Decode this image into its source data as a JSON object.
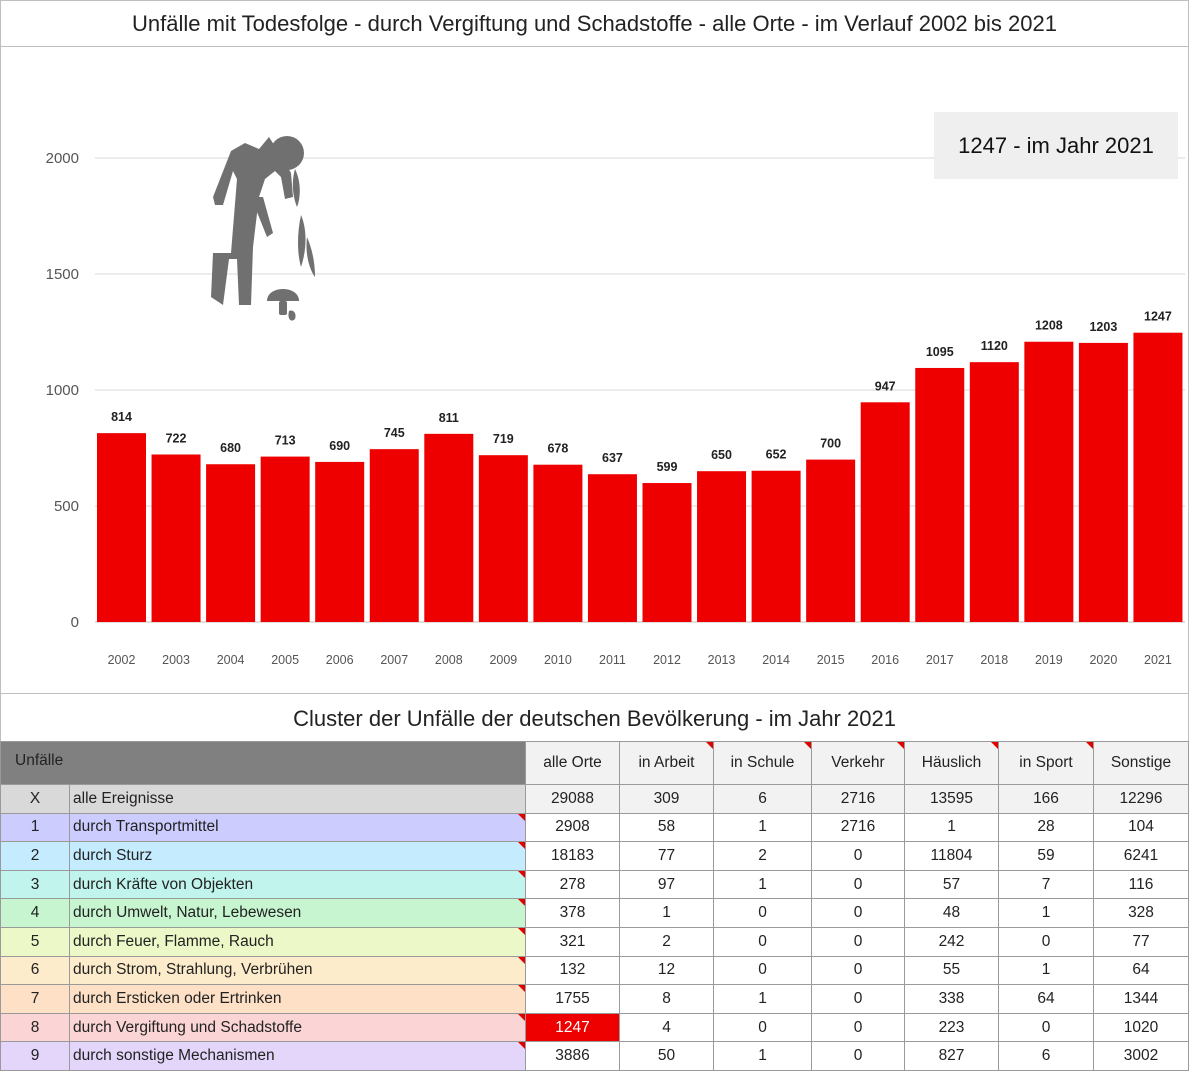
{
  "title": "Unfälle mit Todesfolge - durch Vergiftung und Schadstoffe  - alle Orte - im Verlauf 2002 bis 2021",
  "highlight": "1247 - im Jahr 2021",
  "icon": "poisoning-person-mushroom-icon",
  "colors": {
    "bar": "#ee0000",
    "icon": "#707070",
    "highlight_cell": "#ee0000"
  },
  "chart_data": {
    "type": "bar",
    "categories": [
      "2002",
      "2003",
      "2004",
      "2005",
      "2006",
      "2007",
      "2008",
      "2009",
      "2010",
      "2011",
      "2012",
      "2013",
      "2014",
      "2015",
      "2016",
      "2017",
      "2018",
      "2019",
      "2020",
      "2021"
    ],
    "values": [
      814,
      722,
      680,
      713,
      690,
      745,
      811,
      719,
      678,
      637,
      599,
      650,
      652,
      700,
      947,
      1095,
      1120,
      1208,
      1203,
      1247
    ],
    "yticks": [
      0,
      500,
      1000,
      1500,
      2000
    ],
    "ylim": [
      0,
      2000
    ],
    "grid": true,
    "data_labels": true,
    "marked_category": "2021"
  },
  "cluster": {
    "title": "Cluster der Unfälle der deutschen Bevölkerung - im Jahr 2021",
    "corner_label": "Unfälle",
    "columns": [
      "alle Orte",
      "in Arbeit",
      "in Schule",
      "Verkehr",
      "Häuslich",
      "in Sport",
      "Sonstige"
    ],
    "flagged_columns": [
      1,
      2,
      3,
      4,
      5
    ],
    "rows": [
      {
        "idx": "X",
        "label": "alle Ereignisse",
        "color": "#d9d9d9",
        "values": [
          "29088",
          "309",
          "6",
          "2716",
          "13595",
          "166",
          "12296"
        ]
      },
      {
        "idx": "1",
        "label": "durch Transportmittel",
        "color": "#ccccff",
        "values": [
          "2908",
          "58",
          "1",
          "2716",
          "1",
          "28",
          "104"
        ]
      },
      {
        "idx": "2",
        "label": "durch Sturz",
        "color": "#c5ebff",
        "values": [
          "18183",
          "77",
          "2",
          "0",
          "11804",
          "59",
          "6241"
        ]
      },
      {
        "idx": "3",
        "label": "durch Kräfte von Objekten",
        "color": "#c1f4ec",
        "values": [
          "278",
          "97",
          "1",
          "0",
          "57",
          "7",
          "116"
        ]
      },
      {
        "idx": "4",
        "label": "durch Umwelt, Natur, Lebewesen",
        "color": "#c6f5cf",
        "values": [
          "378",
          "1",
          "0",
          "0",
          "48",
          "1",
          "328"
        ]
      },
      {
        "idx": "5",
        "label": "durch Feuer, Flamme, Rauch",
        "color": "#ecf8c8",
        "values": [
          "321",
          "2",
          "0",
          "0",
          "242",
          "0",
          "77"
        ]
      },
      {
        "idx": "6",
        "label": "durch Strom, Strahlung, Verbrühen",
        "color": "#fdeccb",
        "values": [
          "132",
          "12",
          "0",
          "0",
          "55",
          "1",
          "64"
        ]
      },
      {
        "idx": "7",
        "label": "durch Ersticken oder Ertrinken",
        "color": "#fde0c6",
        "values": [
          "1755",
          "8",
          "1",
          "0",
          "338",
          "64",
          "1344"
        ]
      },
      {
        "idx": "8",
        "label": "durch Vergiftung und Schadstoffe",
        "color": "#fbd5d5",
        "values": [
          "1247",
          "4",
          "0",
          "0",
          "223",
          "0",
          "1020"
        ]
      },
      {
        "idx": "9",
        "label": "durch sonstige Mechanismen",
        "color": "#e3d6fa",
        "values": [
          "3886",
          "50",
          "1",
          "0",
          "827",
          "6",
          "3002"
        ]
      }
    ]
  }
}
